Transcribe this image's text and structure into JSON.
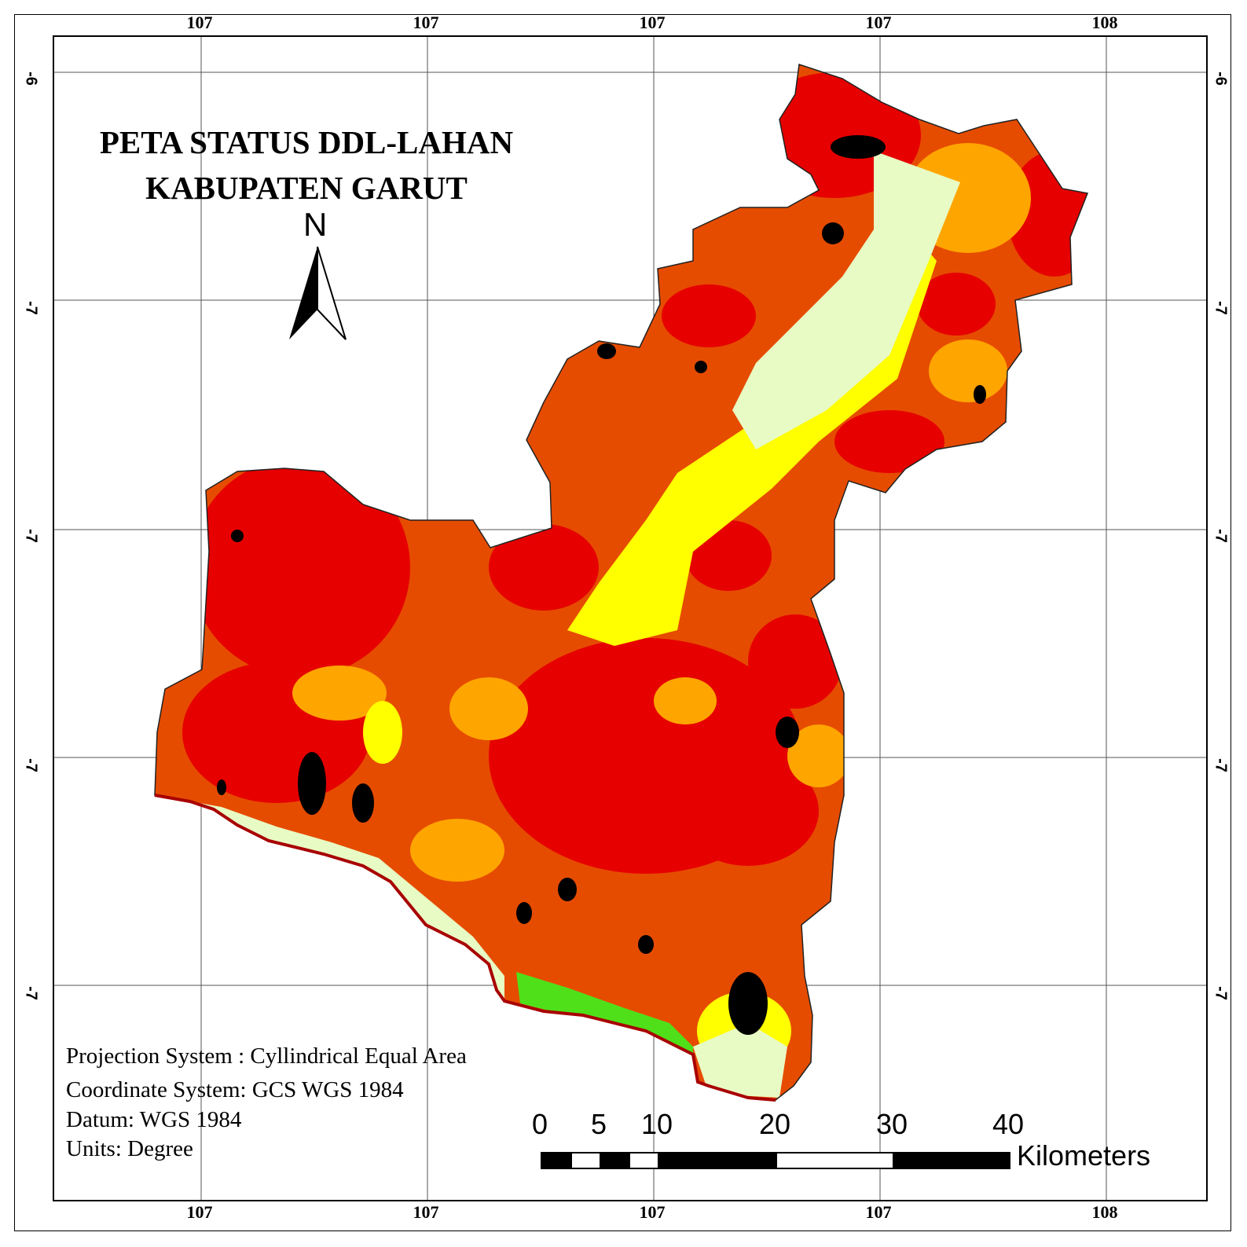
{
  "map": {
    "title_line1": "PETA STATUS DDL-LAHAN",
    "title_line2": "KABUPATEN GARUT",
    "north_label": "N",
    "lon_ticks": [
      "107",
      "107",
      "107",
      "107",
      "108"
    ],
    "lat_ticks": [
      "-6",
      "-7",
      "-7",
      "-7",
      "-7"
    ],
    "projection": "Projection System : Cyllindrical Equal Area",
    "coordinate_system": "Coordinate System: GCS WGS 1984",
    "datum": "Datum: WGS 1984",
    "units": "Units: Degree",
    "scale_labels": [
      "0",
      "5",
      "10",
      "20",
      "30",
      "40"
    ],
    "scale_unit": "Kilometers",
    "colors": {
      "very_high": "#e60000",
      "high": "#e64c00",
      "medium": "#ffa500",
      "low": "#ffff00",
      "very_low": "#e8fbc4",
      "green": "#4fe01a",
      "black": "#000000",
      "coast": "#a80000"
    }
  }
}
